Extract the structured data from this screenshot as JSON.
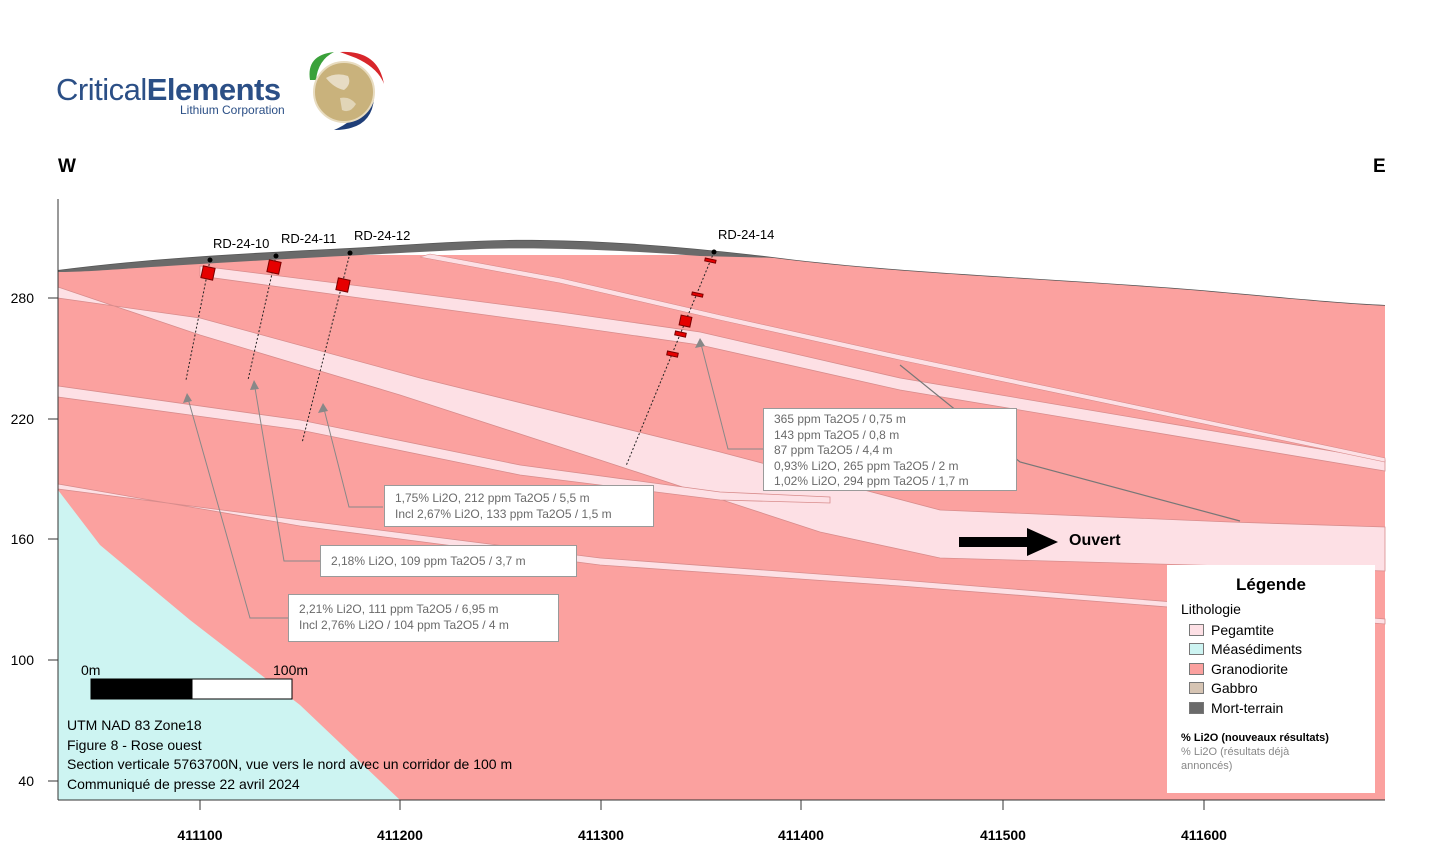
{
  "logo": {
    "brand_light": "Critical",
    "brand_bold": "Elements",
    "subtitle": "Lithium Corporation"
  },
  "compass": {
    "west": "W",
    "east": "E"
  },
  "x_axis_ticks": [
    "411100",
    "411200",
    "411300",
    "411400",
    "411500",
    "411600"
  ],
  "y_axis_ticks": [
    "280",
    "220",
    "160",
    "100",
    "40"
  ],
  "drillholes": [
    "RD-24-10",
    "RD-24-11",
    "RD-24-12",
    "RD-24-14"
  ],
  "annotations": [
    {
      "lines": [
        "365 ppm Ta2O5 / 0,75 m",
        "143 ppm Ta2O5 / 0,8 m",
        "87 ppm Ta2O5 / 4,4 m",
        "0,93% Li2O, 265 ppm Ta2O5 / 2 m",
        "1,02% Li2O, 294 ppm Ta2O5 / 1,7 m"
      ]
    },
    {
      "lines": [
        "1,75% Li2O, 212 ppm Ta2O5 / 5,5 m",
        "Incl 2,67% Li2O, 133 ppm Ta2O5 / 1,5 m"
      ]
    },
    {
      "lines": [
        "2,18% Li2O, 109 ppm Ta2O5 / 3,7 m"
      ]
    },
    {
      "lines": [
        "2,21% Li2O, 111 ppm Ta2O5 / 6,95 m",
        "Incl 2,76% Li2O / 104 ppm Ta2O5 / 4 m"
      ]
    }
  ],
  "open_label": "Ouvert",
  "scale_bar": {
    "start": "0m",
    "end": "100m"
  },
  "caption": [
    "UTM NAD 83 Zone18",
    "Figure 8 - Rose ouest",
    "Section verticale 5763700N, vue vers le nord avec un corridor de 100 m",
    "Communiqué de presse 22 avril 2024"
  ],
  "legend": {
    "title": "Légende",
    "subtitle": "Lithologie",
    "items": [
      {
        "label": "Pegamtite",
        "color": "#fde0e5"
      },
      {
        "label": "Méasédiments",
        "color": "#cdf4f2"
      },
      {
        "label": "Granodiorite",
        "color": "#fba19f"
      },
      {
        "label": "Gabbro",
        "color": "#d6c4b3"
      },
      {
        "label": "Mort-terrain",
        "color": "#6a6a6a"
      }
    ],
    "li2o_new": "% Li2O (nouveaux résultats)",
    "li2o_old_1": "% Li2O (résultats déjà",
    "li2o_old_2": "annoncés)"
  },
  "colors": {
    "granodiorite": "#fba19f",
    "pegmatite": "#fde0e5",
    "metasediment": "#cdf4f2",
    "overburden": "#6a6a6a",
    "intercept": "#e60000",
    "brand": "#2b4f86"
  }
}
